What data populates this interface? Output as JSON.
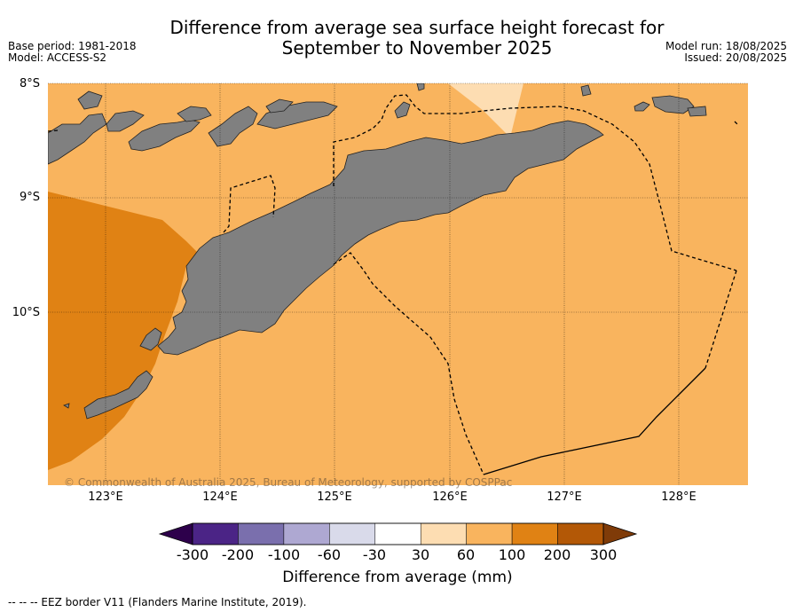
{
  "title_line1": "Difference from average sea surface height forecast for",
  "title_line2": "September to November 2025",
  "base_period": "Base period: 1981-2018",
  "model": "Model: ACCESS-S2",
  "model_run": "Model run: 18/08/2025",
  "issued": "Issued: 20/08/2025",
  "lat_labels": [
    "8°S",
    "9°S",
    "10°S"
  ],
  "lon_labels": [
    "123°E",
    "124°E",
    "125°E",
    "126°E",
    "127°E",
    "128°E"
  ],
  "copyright": "© Commonwealth of Australia 2025, Bureau of Meteorology, supported by COSPPac",
  "colorbar": {
    "ticks": [
      "-300",
      "-200",
      "-100",
      "-60",
      "-30",
      "30",
      "60",
      "100",
      "200",
      "300"
    ],
    "colors": [
      "#4b2486",
      "#7a6fad",
      "#aea8d2",
      "#d9daea",
      "#ffffff",
      "#fdddb2",
      "#f9b45e",
      "#e08214",
      "#b35806"
    ],
    "under_color": "#2d004b",
    "over_color": "#7f3b08",
    "label": "Difference from average (mm)"
  },
  "colors": {
    "land": "#808080",
    "ocean_base": "#f9b45e",
    "ocean_high": "#e08214",
    "ocean_low": "#fdddb2"
  },
  "footnote": "--  --  -- EEZ border V11 (Flanders Marine Institute, 2019)."
}
